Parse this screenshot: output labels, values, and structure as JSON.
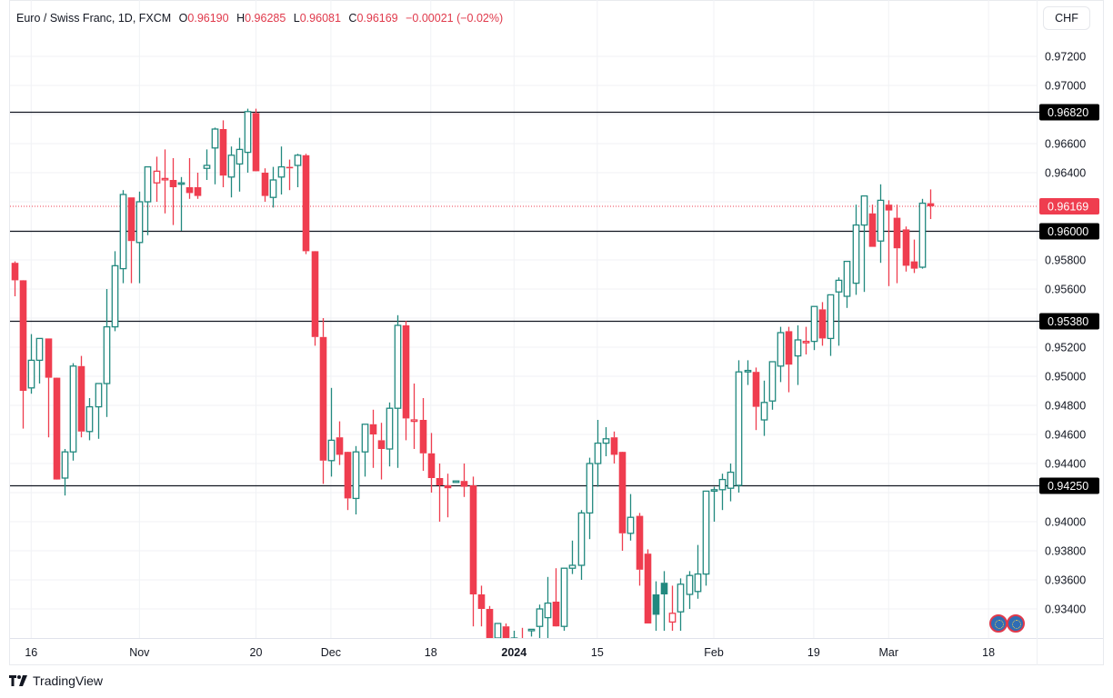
{
  "header": {
    "symbol_title": "Euro / Swiss Franc, 1D, FXCM",
    "ohlc": [
      {
        "label": "O",
        "value": "0.96190"
      },
      {
        "label": "H",
        "value": "0.96285"
      },
      {
        "label": "L",
        "value": "0.96081"
      },
      {
        "label": "C",
        "value": "0.96169"
      }
    ],
    "change": "−0.00021 (−0.02%)",
    "currency_button": "CHF"
  },
  "brand": {
    "name": "TradingView"
  },
  "colors": {
    "up": "#26a69a",
    "up_dark": "#22897f",
    "down": "#ef3d4f",
    "level_line": "#131722",
    "grid": "#f0f2f5",
    "last_price_label": "#ef3d4f",
    "level_label_bg": "#000000"
  },
  "chart_data": {
    "type": "candlestick",
    "title": "Euro / Swiss Franc, 1D, FXCM",
    "xlabel": "",
    "ylabel": "CHF",
    "ylim": [
      0.9325,
      0.9745
    ],
    "grid": true,
    "y_ticks": [
      "0.97200",
      "0.97000",
      "0.96600",
      "0.96400",
      "0.95800",
      "0.95600",
      "0.95200",
      "0.95000",
      "0.94800",
      "0.94600",
      "0.94400",
      "0.94000",
      "0.93800",
      "0.93600",
      "0.93400"
    ],
    "x_ticks": [
      {
        "label": "16",
        "index": 2,
        "bold": false
      },
      {
        "label": "Nov",
        "index": 15,
        "bold": false
      },
      {
        "label": "20",
        "index": 29,
        "bold": false
      },
      {
        "label": "Dec",
        "index": 38,
        "bold": false
      },
      {
        "label": "18",
        "index": 50,
        "bold": false
      },
      {
        "label": "2024",
        "index": 60,
        "bold": true
      },
      {
        "label": "15",
        "index": 70,
        "bold": false
      },
      {
        "label": "Feb",
        "index": 84,
        "bold": false
      },
      {
        "label": "19",
        "index": 96,
        "bold": false
      },
      {
        "label": "Mar",
        "index": 105,
        "bold": false
      },
      {
        "label": "18",
        "index": 117,
        "bold": false
      }
    ],
    "horizontal_levels": [
      "0.96820",
      "0.96000",
      "0.95380",
      "0.94250"
    ],
    "last_price": "0.96169",
    "candles": [
      {
        "o": 0.9578,
        "h": 0.9579,
        "l": 0.9555,
        "c": 0.9566
      },
      {
        "o": 0.9566,
        "h": 0.9558,
        "l": 0.9464,
        "c": 0.949
      },
      {
        "o": 0.9492,
        "h": 0.9529,
        "l": 0.9488,
        "c": 0.9511
      },
      {
        "o": 0.9511,
        "h": 0.9522,
        "l": 0.9495,
        "c": 0.9526
      },
      {
        "o": 0.9526,
        "h": 0.9526,
        "l": 0.9458,
        "c": 0.9499
      },
      {
        "o": 0.9499,
        "h": 0.9488,
        "l": 0.9437,
        "c": 0.9429
      },
      {
        "o": 0.943,
        "h": 0.945,
        "l": 0.9418,
        "c": 0.9448
      },
      {
        "o": 0.9448,
        "h": 0.9509,
        "l": 0.9442,
        "c": 0.9507
      },
      {
        "o": 0.9507,
        "h": 0.9514,
        "l": 0.9458,
        "c": 0.9462
      },
      {
        "o": 0.9462,
        "h": 0.9485,
        "l": 0.9456,
        "c": 0.9479
      },
      {
        "o": 0.9479,
        "h": 0.9495,
        "l": 0.9457,
        "c": 0.9495
      },
      {
        "o": 0.9495,
        "h": 0.956,
        "l": 0.9472,
        "c": 0.9534
      },
      {
        "o": 0.9534,
        "h": 0.9586,
        "l": 0.9531,
        "c": 0.9576
      },
      {
        "o": 0.9574,
        "h": 0.9628,
        "l": 0.9564,
        "c": 0.9625
      },
      {
        "o": 0.9623,
        "h": 0.9623,
        "l": 0.9564,
        "c": 0.9593
      },
      {
        "o": 0.9592,
        "h": 0.9627,
        "l": 0.9564,
        "c": 0.962
      },
      {
        "o": 0.962,
        "h": 0.9644,
        "l": 0.9597,
        "c": 0.9644
      },
      {
        "o": 0.9633,
        "h": 0.9651,
        "l": 0.962,
        "c": 0.9641
      },
      {
        "o": 0.9636,
        "h": 0.9656,
        "l": 0.9612,
        "c": 0.9636
      },
      {
        "o": 0.9635,
        "h": 0.965,
        "l": 0.9604,
        "c": 0.963
      },
      {
        "o": 0.9633,
        "h": 0.9637,
        "l": 0.96,
        "c": 0.9633
      },
      {
        "o": 0.963,
        "h": 0.965,
        "l": 0.9622,
        "c": 0.9626
      },
      {
        "o": 0.963,
        "h": 0.964,
        "l": 0.9622,
        "c": 0.9624
      },
      {
        "o": 0.9643,
        "h": 0.9656,
        "l": 0.9635,
        "c": 0.9645
      },
      {
        "o": 0.9657,
        "h": 0.9671,
        "l": 0.9632,
        "c": 0.967
      },
      {
        "o": 0.967,
        "h": 0.9676,
        "l": 0.963,
        "c": 0.9638
      },
      {
        "o": 0.9637,
        "h": 0.9658,
        "l": 0.9623,
        "c": 0.9652
      },
      {
        "o": 0.9646,
        "h": 0.9664,
        "l": 0.9627,
        "c": 0.9656
      },
      {
        "o": 0.9654,
        "h": 0.9684,
        "l": 0.964,
        "c": 0.9682
      },
      {
        "o": 0.9681,
        "h": 0.9684,
        "l": 0.9646,
        "c": 0.9641
      },
      {
        "o": 0.964,
        "h": 0.9643,
        "l": 0.962,
        "c": 0.9624
      },
      {
        "o": 0.9623,
        "h": 0.9644,
        "l": 0.9616,
        "c": 0.9635
      },
      {
        "o": 0.9637,
        "h": 0.9658,
        "l": 0.9625,
        "c": 0.9644
      },
      {
        "o": 0.9644,
        "h": 0.9649,
        "l": 0.9628,
        "c": 0.9643
      },
      {
        "o": 0.9645,
        "h": 0.9653,
        "l": 0.963,
        "c": 0.9652
      },
      {
        "o": 0.9652,
        "h": 0.9653,
        "l": 0.9584,
        "c": 0.9586
      },
      {
        "o": 0.9586,
        "h": 0.9578,
        "l": 0.9521,
        "c": 0.9527
      },
      {
        "o": 0.9527,
        "h": 0.954,
        "l": 0.9426,
        "c": 0.9442
      },
      {
        "o": 0.9442,
        "h": 0.9492,
        "l": 0.9431,
        "c": 0.9456
      },
      {
        "o": 0.9458,
        "h": 0.9469,
        "l": 0.9439,
        "c": 0.9446
      },
      {
        "o": 0.9448,
        "h": 0.9443,
        "l": 0.9408,
        "c": 0.9416
      },
      {
        "o": 0.9416,
        "h": 0.9452,
        "l": 0.9405,
        "c": 0.9448
      },
      {
        "o": 0.9448,
        "h": 0.9466,
        "l": 0.9431,
        "c": 0.9467
      },
      {
        "o": 0.9467,
        "h": 0.9477,
        "l": 0.9437,
        "c": 0.946
      },
      {
        "o": 0.9456,
        "h": 0.9468,
        "l": 0.9429,
        "c": 0.945
      },
      {
        "o": 0.945,
        "h": 0.9482,
        "l": 0.9438,
        "c": 0.9478
      },
      {
        "o": 0.9478,
        "h": 0.9542,
        "l": 0.9437,
        "c": 0.9535
      },
      {
        "o": 0.9535,
        "h": 0.9538,
        "l": 0.9456,
        "c": 0.9471
      },
      {
        "o": 0.9469,
        "h": 0.9495,
        "l": 0.945,
        "c": 0.947
      },
      {
        "o": 0.947,
        "h": 0.9485,
        "l": 0.9435,
        "c": 0.9447
      },
      {
        "o": 0.9447,
        "h": 0.9461,
        "l": 0.942,
        "c": 0.943
      },
      {
        "o": 0.943,
        "h": 0.944,
        "l": 0.94,
        "c": 0.9425
      },
      {
        "o": 0.9425,
        "h": 0.9433,
        "l": 0.9403,
        "c": 0.9423
      },
      {
        "o": 0.9427,
        "h": 0.9428,
        "l": 0.9427,
        "c": 0.9428
      },
      {
        "o": 0.9428,
        "h": 0.944,
        "l": 0.9417,
        "c": 0.9424
      },
      {
        "o": 0.9425,
        "h": 0.9431,
        "l": 0.9328,
        "c": 0.935
      },
      {
        "o": 0.935,
        "h": 0.9356,
        "l": 0.9328,
        "c": 0.934
      },
      {
        "o": 0.934,
        "h": 0.9342,
        "l": 0.9315,
        "c": 0.932
      },
      {
        "o": 0.932,
        "h": 0.933,
        "l": 0.93,
        "c": 0.933
      },
      {
        "o": 0.9328,
        "h": 0.933,
        "l": 0.93,
        "c": 0.9315
      },
      {
        "o": 0.9315,
        "h": 0.9325,
        "l": 0.93,
        "c": 0.932
      },
      {
        "o": 0.932,
        "h": 0.9327,
        "l": 0.9305,
        "c": 0.9315
      },
      {
        "o": 0.9325,
        "h": 0.9326,
        "l": 0.9321,
        "c": 0.9326
      },
      {
        "o": 0.9328,
        "h": 0.9343,
        "l": 0.932,
        "c": 0.934
      },
      {
        "o": 0.9334,
        "h": 0.9362,
        "l": 0.932,
        "c": 0.9344
      },
      {
        "o": 0.9345,
        "h": 0.9368,
        "l": 0.933,
        "c": 0.9328
      },
      {
        "o": 0.9328,
        "h": 0.9368,
        "l": 0.9325,
        "c": 0.9368
      },
      {
        "o": 0.9368,
        "h": 0.9387,
        "l": 0.9364,
        "c": 0.937
      },
      {
        "o": 0.937,
        "h": 0.9408,
        "l": 0.936,
        "c": 0.9406
      },
      {
        "o": 0.9406,
        "h": 0.9444,
        "l": 0.9388,
        "c": 0.944
      },
      {
        "o": 0.944,
        "h": 0.947,
        "l": 0.9424,
        "c": 0.9454
      },
      {
        "o": 0.9454,
        "h": 0.9465,
        "l": 0.9445,
        "c": 0.9457
      },
      {
        "o": 0.9458,
        "h": 0.9462,
        "l": 0.944,
        "c": 0.9446
      },
      {
        "o": 0.9448,
        "h": 0.9441,
        "l": 0.938,
        "c": 0.9392
      },
      {
        "o": 0.9392,
        "h": 0.9419,
        "l": 0.9387,
        "c": 0.9403
      },
      {
        "o": 0.9404,
        "h": 0.9406,
        "l": 0.9356,
        "c": 0.9367
      },
      {
        "o": 0.9378,
        "h": 0.9381,
        "l": 0.9336,
        "c": 0.933
      },
      {
        "o": 0.935,
        "h": 0.9359,
        "l": 0.9325,
        "c": 0.9336
      },
      {
        "o": 0.9358,
        "h": 0.9366,
        "l": 0.9325,
        "c": 0.935
      },
      {
        "o": 0.9331,
        "h": 0.9356,
        "l": 0.9325,
        "c": 0.9337
      },
      {
        "o": 0.9338,
        "h": 0.9361,
        "l": 0.9325,
        "c": 0.9357
      },
      {
        "o": 0.935,
        "h": 0.9366,
        "l": 0.934,
        "c": 0.9363
      },
      {
        "o": 0.9352,
        "h": 0.9384,
        "l": 0.9347,
        "c": 0.9364
      },
      {
        "o": 0.9364,
        "h": 0.9413,
        "l": 0.9356,
        "c": 0.9421
      },
      {
        "o": 0.9421,
        "h": 0.9424,
        "l": 0.94,
        "c": 0.9422
      },
      {
        "o": 0.9422,
        "h": 0.9433,
        "l": 0.9408,
        "c": 0.9429
      },
      {
        "o": 0.9423,
        "h": 0.944,
        "l": 0.9414,
        "c": 0.9434
      },
      {
        "o": 0.9425,
        "h": 0.9511,
        "l": 0.942,
        "c": 0.9503
      },
      {
        "o": 0.9503,
        "h": 0.9511,
        "l": 0.9494,
        "c": 0.9504
      },
      {
        "o": 0.9503,
        "h": 0.9506,
        "l": 0.9463,
        "c": 0.9479
      },
      {
        "o": 0.947,
        "h": 0.9497,
        "l": 0.9459,
        "c": 0.9482
      },
      {
        "o": 0.9483,
        "h": 0.9506,
        "l": 0.9477,
        "c": 0.951
      },
      {
        "o": 0.9507,
        "h": 0.9534,
        "l": 0.9496,
        "c": 0.953
      },
      {
        "o": 0.9531,
        "h": 0.9534,
        "l": 0.9489,
        "c": 0.9508
      },
      {
        "o": 0.9514,
        "h": 0.9535,
        "l": 0.9494,
        "c": 0.9525
      },
      {
        "o": 0.9523,
        "h": 0.9534,
        "l": 0.9515,
        "c": 0.9524
      },
      {
        "o": 0.9524,
        "h": 0.9548,
        "l": 0.9518,
        "c": 0.9548
      },
      {
        "o": 0.9546,
        "h": 0.9551,
        "l": 0.9521,
        "c": 0.9526
      },
      {
        "o": 0.9526,
        "h": 0.9555,
        "l": 0.9514,
        "c": 0.9556
      },
      {
        "o": 0.9558,
        "h": 0.9568,
        "l": 0.9521,
        "c": 0.9566
      },
      {
        "o": 0.9555,
        "h": 0.9566,
        "l": 0.9547,
        "c": 0.9579
      },
      {
        "o": 0.9564,
        "h": 0.9618,
        "l": 0.9556,
        "c": 0.9604
      },
      {
        "o": 0.9604,
        "h": 0.9616,
        "l": 0.9558,
        "c": 0.9624
      },
      {
        "o": 0.9612,
        "h": 0.9618,
        "l": 0.9589,
        "c": 0.9589
      },
      {
        "o": 0.9593,
        "h": 0.9632,
        "l": 0.9578,
        "c": 0.9621
      },
      {
        "o": 0.9618,
        "h": 0.9621,
        "l": 0.9562,
        "c": 0.9614
      },
      {
        "o": 0.9609,
        "h": 0.9618,
        "l": 0.9564,
        "c": 0.9588
      },
      {
        "o": 0.9601,
        "h": 0.9603,
        "l": 0.9572,
        "c": 0.9576
      },
      {
        "o": 0.9579,
        "h": 0.9594,
        "l": 0.9571,
        "c": 0.9574
      },
      {
        "o": 0.9575,
        "h": 0.9622,
        "l": 0.9574,
        "c": 0.9619
      },
      {
        "o": 0.9619,
        "h": 0.96285,
        "l": 0.96081,
        "c": 0.96169
      }
    ]
  }
}
